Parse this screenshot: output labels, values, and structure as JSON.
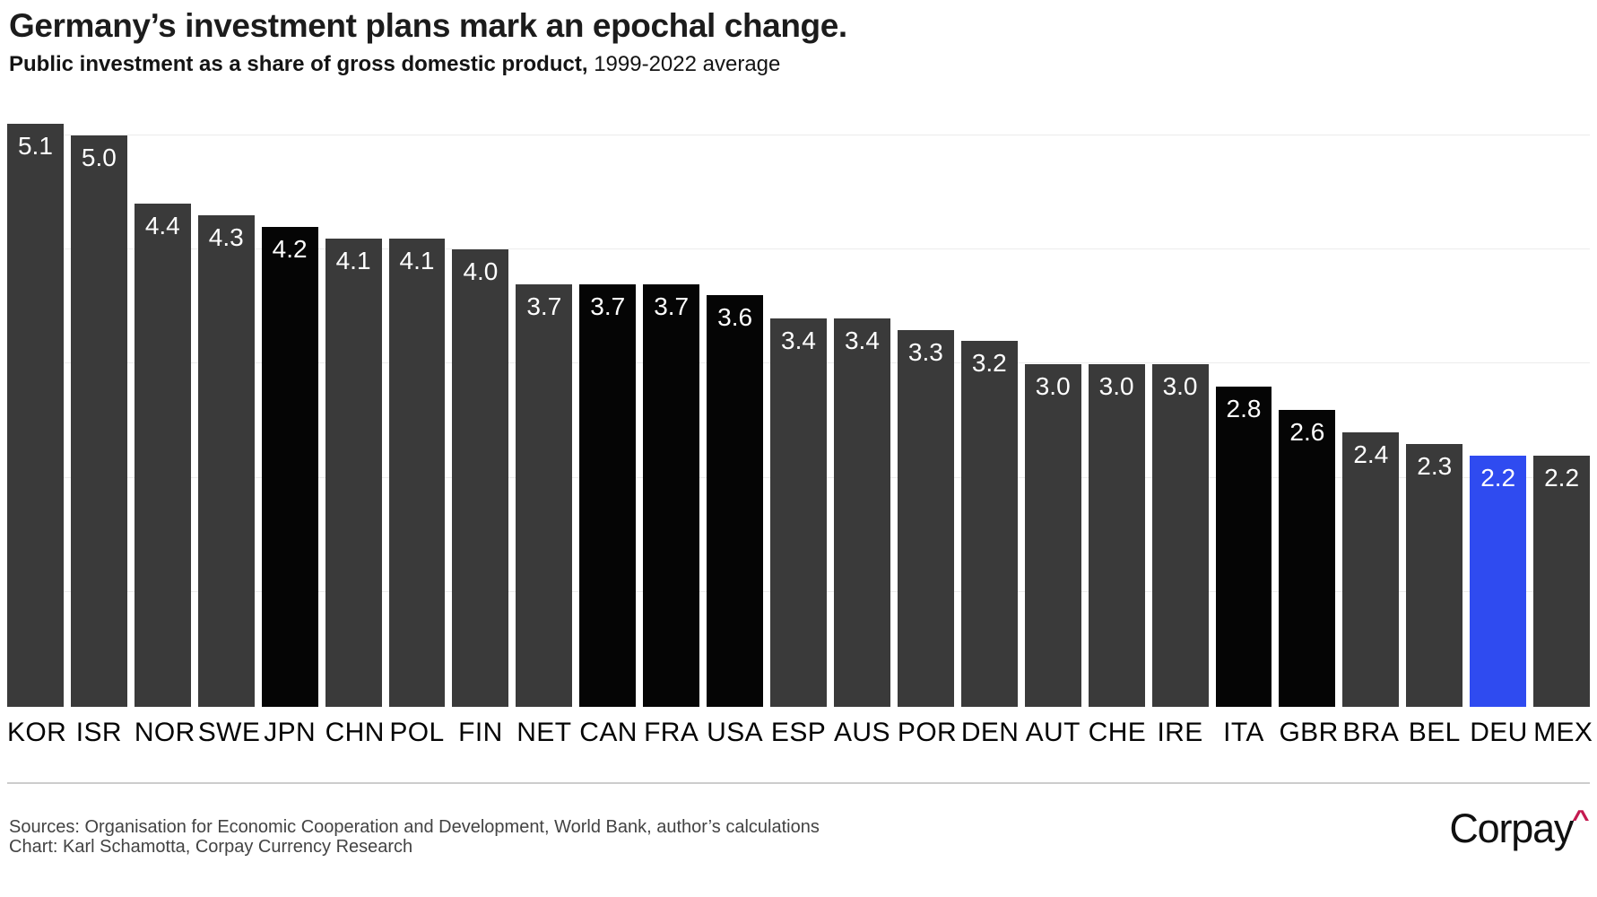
{
  "header": {
    "title": "Germany’s investment plans mark an epochal change.",
    "subtitle_bold": "Public investment as a share of gross domestic product,",
    "subtitle_regular": " 1999-2022 average"
  },
  "chart_data": {
    "type": "bar",
    "title": "Germany’s investment plans mark an epochal change.",
    "subtitle": "Public investment as a share of gross domestic product, 1999-2022 average",
    "categories": [
      "KOR",
      "ISR",
      "NOR",
      "SWE",
      "JPN",
      "CHN",
      "POL",
      "FIN",
      "NET",
      "CAN",
      "FRA",
      "USA",
      "ESP",
      "AUS",
      "POR",
      "DEN",
      "AUT",
      "CHE",
      "IRE",
      "ITA",
      "GBR",
      "BRA",
      "BEL",
      "DEU",
      "MEX"
    ],
    "values": [
      5.1,
      5.0,
      4.4,
      4.3,
      4.2,
      4.1,
      4.1,
      4.0,
      3.7,
      3.7,
      3.7,
      3.6,
      3.4,
      3.4,
      3.3,
      3.2,
      3.0,
      3.0,
      3.0,
      2.8,
      2.6,
      2.4,
      2.3,
      2.2,
      2.2
    ],
    "value_labels": [
      "5.1",
      "5.0",
      "4.4",
      "4.3",
      "4.2",
      "4.1",
      "4.1",
      "4.0",
      "3.7",
      "3.7",
      "3.7",
      "3.6",
      "3.4",
      "3.4",
      "3.3",
      "3.2",
      "3.0",
      "3.0",
      "3.0",
      "2.8",
      "2.6",
      "2.4",
      "2.3",
      "2.2",
      "2.2"
    ],
    "bar_color_roles": [
      "default",
      "default",
      "default",
      "default",
      "dark",
      "default",
      "default",
      "default",
      "default",
      "dark",
      "dark",
      "dark",
      "default",
      "default",
      "default",
      "default",
      "default",
      "default",
      "default",
      "dark",
      "dark",
      "default",
      "default",
      "highlight",
      "default"
    ],
    "palette": {
      "default": "#3a3a3a",
      "dark": "#050505",
      "highlight": "#2f4bf0"
    },
    "highlighted_category": "DEU",
    "value_label_position": "inside-top",
    "value_label_color": "#ffffff",
    "xlabel": "",
    "ylabel": "",
    "ylim": [
      0,
      5.22
    ],
    "gridline_values": [
      1,
      2,
      3,
      4,
      5
    ],
    "gridline_color": "#ececec",
    "legend": false
  },
  "footer": {
    "sources": "Sources: Organisation for Economic Cooperation and Development, World Bank, author’s calculations",
    "credit": "Chart: Karl Schamotta, Corpay Currency Research",
    "logo_text": "Corpay",
    "logo_caret": "^"
  }
}
